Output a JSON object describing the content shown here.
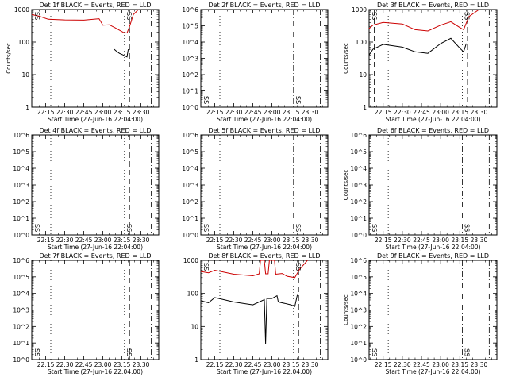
{
  "chart_data": [
    {
      "type": "line",
      "title": "Det 1f BLACK = Events, RED = LLD",
      "xlabel": "Start Time (27-Jun-16 22:04:00)",
      "ylabel": "Counts/sec",
      "yscale": "log",
      "ylim": [
        1,
        1000
      ],
      "xlim": [
        "22:04",
        "23:44"
      ],
      "x_tick_labels": [
        "22:15",
        "22:30",
        "22:45",
        "23:00",
        "23:15",
        "23:30"
      ],
      "y_tick_labels": [
        "1",
        "10",
        "100",
        "1000"
      ],
      "annotations": [
        "SS",
        "SS"
      ],
      "markers": [
        {
          "time": "22:08",
          "style": "dash"
        },
        {
          "time": "22:19",
          "style": "dot"
        },
        {
          "time": "23:17",
          "style": "dot"
        },
        {
          "time": "23:21",
          "style": "dash"
        },
        {
          "time": "23:38",
          "style": "dash-dot"
        }
      ],
      "series": [
        {
          "color": "#cc0000",
          "x": [
            "22:04",
            "22:10",
            "22:17",
            "22:30",
            "22:45",
            "22:57",
            "23:00",
            "23:05",
            "23:10",
            "23:16",
            "23:19",
            "23:21",
            "23:24",
            "23:28"
          ],
          "values": [
            700,
            620,
            500,
            480,
            470,
            520,
            330,
            340,
            270,
            200,
            190,
            300,
            700,
            1000
          ]
        },
        {
          "color": "#000000",
          "x": [
            "23:09",
            "23:10",
            "23:13",
            "23:16",
            "23:19",
            "23:20"
          ],
          "values": [
            60,
            55,
            45,
            40,
            35,
            60
          ]
        }
      ]
    },
    {
      "type": "line",
      "title": "Det 2f BLACK = Events, RED = LLD",
      "xlabel": "Start Time (27-Jun-16 22:04:00)",
      "ylabel": "",
      "yscale": "log",
      "ylim": [
        1,
        1000000
      ],
      "xlim": [
        "22:04",
        "23:44"
      ],
      "x_tick_labels": [
        "22:15",
        "22:30",
        "22:45",
        "23:00",
        "23:15",
        "23:30"
      ],
      "y_tick_labels": [
        "10^0",
        "10^1",
        "10^2",
        "10^3",
        "10^4",
        "10^5",
        "10^6"
      ],
      "annotations": [
        "SS",
        "SS"
      ],
      "markers": [
        {
          "time": "22:19",
          "style": "dot"
        },
        {
          "time": "23:17",
          "style": "dash-dot"
        },
        {
          "time": "23:38",
          "style": "dash-dot"
        }
      ],
      "series": []
    },
    {
      "type": "line",
      "title": "Det 3f BLACK = Events, RED = LLD",
      "xlabel": "Start Time (27-Jun-16 22:04:00)",
      "ylabel": "Counts/sec",
      "yscale": "log",
      "ylim": [
        1,
        1000
      ],
      "xlim": [
        "22:04",
        "23:44"
      ],
      "x_tick_labels": [
        "22:15",
        "22:30",
        "22:45",
        "23:00",
        "23:15",
        "23:30"
      ],
      "y_tick_labels": [
        "1",
        "10",
        "100",
        "1000"
      ],
      "annotations": [
        "SS",
        "SS"
      ],
      "markers": [
        {
          "time": "22:08",
          "style": "dash"
        },
        {
          "time": "22:19",
          "style": "dot"
        },
        {
          "time": "23:17",
          "style": "dot"
        },
        {
          "time": "23:21",
          "style": "dash"
        },
        {
          "time": "23:38",
          "style": "dash-dot"
        }
      ],
      "series": [
        {
          "color": "#cc0000",
          "x": [
            "22:04",
            "22:07",
            "22:15",
            "22:30",
            "22:40",
            "22:50",
            "23:00",
            "23:08",
            "23:15",
            "23:18",
            "23:22",
            "23:30"
          ],
          "values": [
            260,
            330,
            400,
            360,
            240,
            220,
            330,
            420,
            280,
            240,
            600,
            1000
          ]
        },
        {
          "color": "#000000",
          "x": [
            "22:04",
            "22:07",
            "22:15",
            "22:30",
            "22:40",
            "22:50",
            "23:00",
            "23:08",
            "23:15",
            "23:18",
            "23:20"
          ],
          "values": [
            40,
            60,
            85,
            70,
            50,
            45,
            90,
            130,
            65,
            50,
            90
          ]
        }
      ]
    },
    {
      "type": "line",
      "title": "Det 4f BLACK = Events, RED = LLD",
      "xlabel": "Start Time (27-Jun-16 22:04:00)",
      "ylabel": "",
      "yscale": "log",
      "ylim": [
        1,
        1000000
      ],
      "xlim": [
        "22:04",
        "23:44"
      ],
      "x_tick_labels": [
        "22:15",
        "22:30",
        "22:45",
        "23:00",
        "23:15",
        "23:30"
      ],
      "y_tick_labels": [
        "10^0",
        "10^1",
        "10^2",
        "10^3",
        "10^4",
        "10^5",
        "10^6"
      ],
      "annotations": [
        "SS",
        "SS"
      ],
      "markers": [
        {
          "time": "22:19",
          "style": "dot"
        },
        {
          "time": "23:17",
          "style": "dot"
        },
        {
          "time": "23:21",
          "style": "dash"
        },
        {
          "time": "23:38",
          "style": "dash-dot"
        }
      ],
      "series": []
    },
    {
      "type": "line",
      "title": "Det 5f BLACK = Events, RED = LLD",
      "xlabel": "Start Time (27-Jun-16 22:04:00)",
      "ylabel": "",
      "yscale": "log",
      "ylim": [
        1,
        1000000
      ],
      "xlim": [
        "22:04",
        "23:44"
      ],
      "x_tick_labels": [
        "22:15",
        "22:30",
        "22:45",
        "23:00",
        "23:15",
        "23:30"
      ],
      "y_tick_labels": [
        "10^0",
        "10^1",
        "10^2",
        "10^3",
        "10^4",
        "10^5",
        "10^6"
      ],
      "annotations": [
        "SS",
        "SS"
      ],
      "markers": [
        {
          "time": "22:19",
          "style": "dot"
        },
        {
          "time": "23:17",
          "style": "dash-dot"
        },
        {
          "time": "23:38",
          "style": "dash-dot"
        }
      ],
      "series": []
    },
    {
      "type": "line",
      "title": "Det 6f BLACK = Events, RED = LLD",
      "xlabel": "Start Time (27-Jun-16 22:04:00)",
      "ylabel": "Counts/sec",
      "yscale": "log",
      "ylim": [
        1,
        1000000
      ],
      "xlim": [
        "22:04",
        "23:44"
      ],
      "x_tick_labels": [
        "22:15",
        "22:30",
        "22:45",
        "23:00",
        "23:15",
        "23:30"
      ],
      "y_tick_labels": [
        "10^0",
        "10^1",
        "10^2",
        "10^3",
        "10^4",
        "10^5",
        "10^6"
      ],
      "annotations": [
        "SS",
        "SS"
      ],
      "markers": [
        {
          "time": "22:19",
          "style": "dot"
        },
        {
          "time": "23:17",
          "style": "dash-dot"
        },
        {
          "time": "23:38",
          "style": "dash-dot"
        }
      ],
      "series": []
    },
    {
      "type": "line",
      "title": "Det 7f BLACK = Events, RED = LLD",
      "xlabel": "Start Time (27-Jun-16 22:04:00)",
      "ylabel": "",
      "yscale": "log",
      "ylim": [
        1,
        1000000
      ],
      "xlim": [
        "22:04",
        "23:44"
      ],
      "x_tick_labels": [
        "22:15",
        "22:30",
        "22:45",
        "23:00",
        "23:15",
        "23:30"
      ],
      "y_tick_labels": [
        "10^0",
        "10^1",
        "10^2",
        "10^3",
        "10^4",
        "10^5",
        "10^6"
      ],
      "annotations": [
        "SS",
        "SS"
      ],
      "markers": [
        {
          "time": "22:19",
          "style": "dot"
        },
        {
          "time": "23:17",
          "style": "dot"
        },
        {
          "time": "23:21",
          "style": "dash"
        },
        {
          "time": "23:38",
          "style": "dash-dot"
        }
      ],
      "series": []
    },
    {
      "type": "line",
      "title": "Det 8f BLACK = Events, RED = LLD",
      "xlabel": "Start Time (27-Jun-16 22:04:00)",
      "ylabel": "",
      "yscale": "log",
      "ylim": [
        1,
        1000
      ],
      "xlim": [
        "22:04",
        "23:44"
      ],
      "x_tick_labels": [
        "22:15",
        "22:30",
        "22:45",
        "23:00",
        "23:15",
        "23:30"
      ],
      "y_tick_labels": [
        "1",
        "10",
        "100",
        "1000"
      ],
      "annotations": [
        "SS",
        "SS"
      ],
      "markers": [
        {
          "time": "22:08",
          "style": "dash"
        },
        {
          "time": "22:19",
          "style": "dot"
        },
        {
          "time": "23:17",
          "style": "dot"
        },
        {
          "time": "23:21",
          "style": "dash"
        },
        {
          "time": "23:38",
          "style": "dash-dot"
        }
      ],
      "series": [
        {
          "color": "#cc0000",
          "x": [
            "22:04",
            "22:10",
            "22:15",
            "22:30",
            "22:45",
            "22:50",
            "22:51",
            "22:54",
            "22:55",
            "22:57",
            "22:58",
            "23:02",
            "23:03",
            "23:08",
            "23:12",
            "23:18",
            "23:22",
            "23:28"
          ],
          "values": [
            460,
            420,
            500,
            380,
            340,
            390,
            1000,
            1000,
            390,
            390,
            1000,
            1000,
            380,
            400,
            330,
            300,
            550,
            1000
          ]
        },
        {
          "color": "#000000",
          "x": [
            "22:04",
            "22:10",
            "22:15",
            "22:30",
            "22:45",
            "22:54",
            "22:55",
            "22:56",
            "23:00",
            "23:04",
            "23:05",
            "23:10",
            "23:15",
            "23:18",
            "23:20"
          ],
          "values": [
            60,
            52,
            75,
            55,
            45,
            65,
            3,
            70,
            70,
            85,
            55,
            50,
            45,
            40,
            90
          ]
        }
      ]
    },
    {
      "type": "line",
      "title": "Det 9f BLACK = Events, RED = LLD",
      "xlabel": "Start Time (27-Jun-16 22:04:00)",
      "ylabel": "Counts/sec",
      "yscale": "log",
      "ylim": [
        1,
        1000000
      ],
      "xlim": [
        "22:04",
        "23:44"
      ],
      "x_tick_labels": [
        "22:15",
        "22:30",
        "22:45",
        "23:00",
        "23:15",
        "23:30"
      ],
      "y_tick_labels": [
        "10^0",
        "10^1",
        "10^2",
        "10^3",
        "10^4",
        "10^5",
        "10^6"
      ],
      "annotations": [
        "SS",
        "SS"
      ],
      "markers": [
        {
          "time": "22:19",
          "style": "dot"
        },
        {
          "time": "23:17",
          "style": "dash-dot"
        },
        {
          "time": "23:38",
          "style": "dash-dot"
        }
      ],
      "series": []
    }
  ]
}
